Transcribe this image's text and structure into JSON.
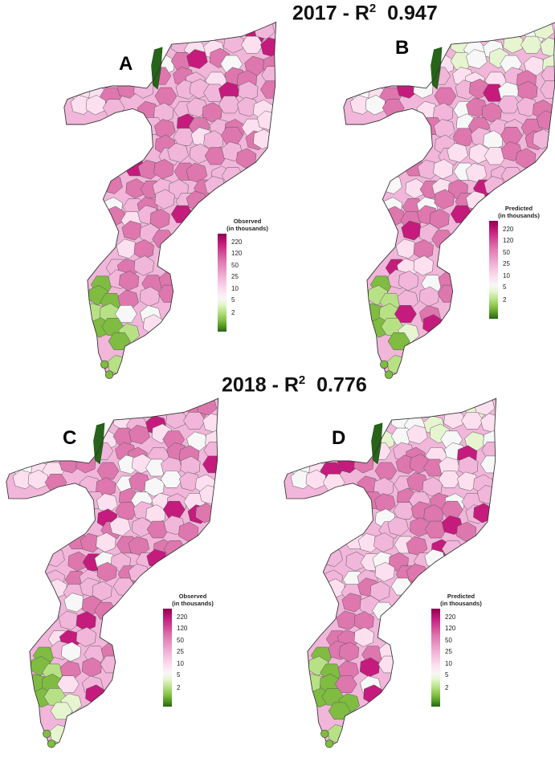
{
  "titles": {
    "top": {
      "year": "2017",
      "r2_label": "R",
      "r2_sup": "2",
      "r2_value": "0.947"
    },
    "bottom": {
      "year": "2018",
      "r2_label": "R",
      "r2_sup": "2",
      "r2_value": "0.776"
    }
  },
  "panels": [
    {
      "label": "A",
      "legend_title": [
        "Observed",
        "(in thousands)"
      ]
    },
    {
      "label": "B",
      "legend_title": [
        "Predicted",
        "(in thousands)"
      ]
    },
    {
      "label": "C",
      "legend_title": [
        "Observed",
        "(in thousands)"
      ]
    },
    {
      "label": "D",
      "legend_title": [
        "Predicted",
        "(in thousands)"
      ]
    }
  ],
  "legend_ticks": [
    "220",
    "120",
    "50",
    "25",
    "10",
    "5",
    "2"
  ],
  "colors": {
    "scale_high": "#8e0152",
    "scale_mid": "#f7f7f7",
    "scale_low": "#276419",
    "border": "#555555"
  }
}
